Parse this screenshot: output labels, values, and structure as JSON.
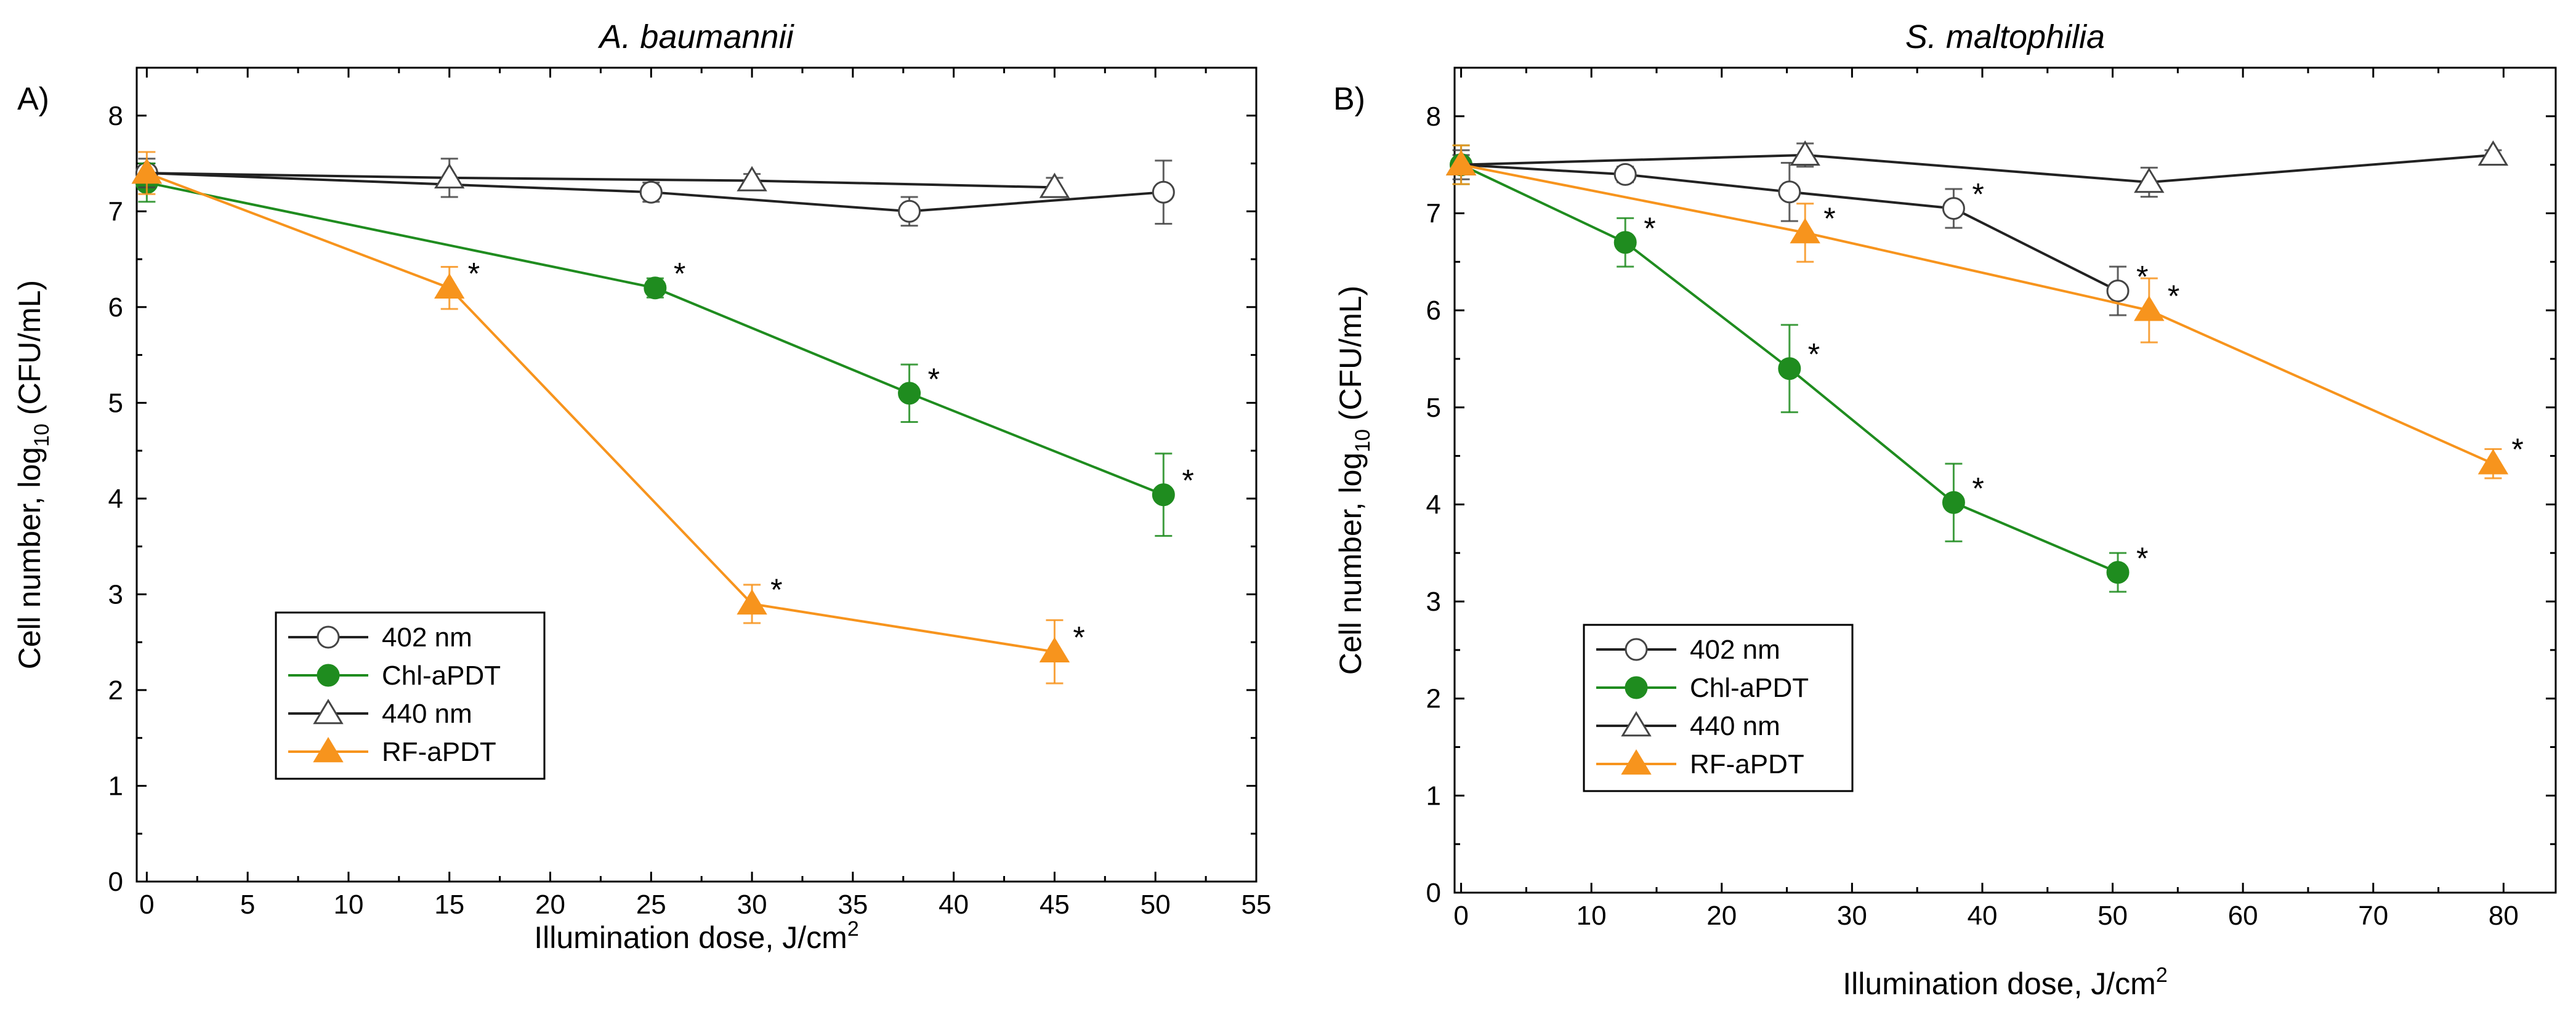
{
  "chart_data": [
    {
      "type": "line",
      "panel": "A)",
      "title": "A. baumannii",
      "xlabel": "Illumination dose, J/cm",
      "xlabel_sup": "2",
      "ylabel": "Cell number, log",
      "ylabel_sub": "10",
      "ylabel_tail": " (CFU/mL)",
      "xlim": [
        -0.5,
        55
      ],
      "ylim": [
        0,
        8.5
      ],
      "xticks": [
        0,
        5,
        10,
        15,
        20,
        25,
        30,
        35,
        40,
        45,
        50,
        55
      ],
      "yticks": [
        0,
        1,
        2,
        3,
        4,
        5,
        6,
        7,
        8
      ],
      "grid": false,
      "legend_position": "bottom-left",
      "series": [
        {
          "name": "402 nm",
          "marker": "circle-open",
          "color": "#000000",
          "x": [
            0,
            25,
            37.8,
            50.4
          ],
          "y": [
            7.4,
            7.2,
            7.0,
            7.2
          ],
          "err": [
            0.1,
            0.1,
            0.15,
            0.33
          ],
          "significant": [
            false,
            false,
            false,
            false
          ]
        },
        {
          "name": "Chl-aPDT",
          "marker": "circle-filled",
          "color": "#1f8c1f",
          "x": [
            0,
            25.2,
            37.8,
            50.4
          ],
          "y": [
            7.3,
            6.2,
            5.1,
            4.04
          ],
          "err": [
            0.2,
            0.1,
            0.3,
            0.43
          ],
          "significant": [
            false,
            true,
            true,
            true
          ]
        },
        {
          "name": "440 nm",
          "marker": "triangle-open",
          "color": "#000000",
          "x": [
            0,
            15,
            30,
            45
          ],
          "y": [
            7.4,
            7.35,
            7.32,
            7.25
          ],
          "err": [
            0.15,
            0.2,
            0.07,
            0.1
          ],
          "significant": [
            false,
            false,
            false,
            false
          ]
        },
        {
          "name": "RF-aPDT",
          "marker": "triangle-filled",
          "color": "#f7941d",
          "x": [
            0,
            15,
            30,
            45
          ],
          "y": [
            7.4,
            6.2,
            2.9,
            2.4
          ],
          "err": [
            0.22,
            0.22,
            0.2,
            0.33
          ],
          "significant": [
            false,
            true,
            true,
            true
          ]
        }
      ]
    },
    {
      "type": "line",
      "panel": "B)",
      "title": "S. maltophilia",
      "xlabel": "Illumination dose, J/cm",
      "xlabel_sup": "2",
      "ylabel": "Cell number, log",
      "ylabel_sub": "10",
      "ylabel_tail": " (CFU/mL)",
      "xlim": [
        -0.5,
        84
      ],
      "ylim": [
        0,
        8.5
      ],
      "xticks": [
        0,
        10,
        20,
        30,
        40,
        50,
        60,
        70,
        80
      ],
      "yticks": [
        0,
        1,
        2,
        3,
        4,
        5,
        6,
        7,
        8
      ],
      "grid": false,
      "legend_position": "bottom-left",
      "series": [
        {
          "name": "402 nm",
          "marker": "circle-open",
          "color": "#000000",
          "x": [
            0,
            12.6,
            25.2,
            37.8,
            50.4
          ],
          "y": [
            7.5,
            7.4,
            7.22,
            7.05,
            6.2
          ],
          "err": [
            0.1,
            0.08,
            0.3,
            0.2,
            0.25
          ],
          "significant": [
            false,
            false,
            false,
            true,
            true
          ]
        },
        {
          "name": "Chl-aPDT",
          "marker": "circle-filled",
          "color": "#1f8c1f",
          "x": [
            0,
            12.6,
            25.2,
            37.8,
            50.4
          ],
          "y": [
            7.5,
            6.7,
            5.4,
            4.02,
            3.3
          ],
          "err": [
            0.2,
            0.25,
            0.45,
            0.4,
            0.2
          ],
          "significant": [
            false,
            true,
            true,
            true,
            true
          ]
        },
        {
          "name": "440 nm",
          "marker": "triangle-open",
          "color": "#000000",
          "x": [
            0,
            26.4,
            52.8,
            79.2
          ],
          "y": [
            7.5,
            7.6,
            7.32,
            7.6
          ],
          "err": [
            0.15,
            0.12,
            0.15,
            0.05
          ],
          "significant": [
            false,
            false,
            false,
            false
          ]
        },
        {
          "name": "RF-aPDT",
          "marker": "triangle-filled",
          "color": "#f7941d",
          "x": [
            0,
            26.4,
            52.8,
            79.2
          ],
          "y": [
            7.5,
            6.8,
            6.0,
            4.42
          ],
          "err": [
            0.2,
            0.3,
            0.33,
            0.15
          ],
          "significant": [
            false,
            true,
            true,
            true
          ]
        }
      ]
    }
  ]
}
